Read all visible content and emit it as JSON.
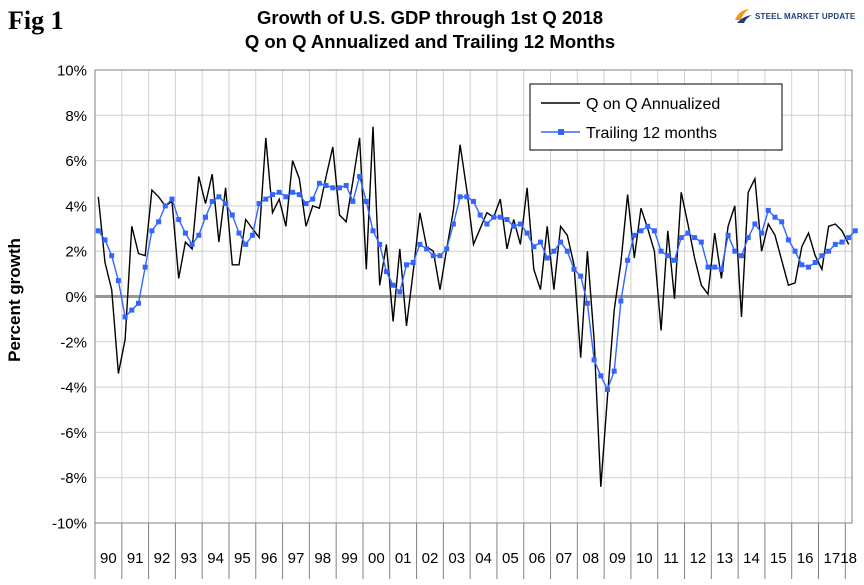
{
  "figure_label": "Fig 1",
  "logo": {
    "text": "STEEL MARKET UPDATE",
    "colors": {
      "orange": "#f7941d",
      "blue": "#1d3d7a"
    }
  },
  "chart_data": {
    "type": "line",
    "title": "Growth of U.S. GDP through 1st Q 2018",
    "subtitle": "Q on Q Annualized and Trailing 12 Months",
    "xlabel": "",
    "ylabel": "Percent growth",
    "ylim": [
      -10,
      10
    ],
    "y_ticks": [
      "-10%",
      "-8%",
      "-6%",
      "-4%",
      "-2%",
      "0%",
      "2%",
      "4%",
      "6%",
      "8%",
      "10%"
    ],
    "year_labels": [
      "90",
      "91",
      "92",
      "93",
      "94",
      "95",
      "96",
      "97",
      "98",
      "99",
      "00",
      "01",
      "02",
      "03",
      "04",
      "05",
      "06",
      "07",
      "08",
      "09",
      "10",
      "11",
      "12",
      "13",
      "14",
      "15",
      "16",
      "17",
      "18"
    ],
    "quarters_start": "1990Q1",
    "grid": true,
    "legend_position": "top-right",
    "colors": {
      "qoq": "#000000",
      "trailing": "#3366ff",
      "zero_line": "#969696",
      "grid": "#d0d0d0"
    },
    "series": [
      {
        "name": "Q on Q Annualized",
        "values": [
          4.4,
          1.5,
          0.3,
          -3.4,
          -1.9,
          3.1,
          1.9,
          1.8,
          4.7,
          4.4,
          4.0,
          4.2,
          0.8,
          2.4,
          2.1,
          5.3,
          4.1,
          5.4,
          2.4,
          4.8,
          1.4,
          1.4,
          3.4,
          3.0,
          2.6,
          7.0,
          3.7,
          4.3,
          3.1,
          6.0,
          5.2,
          3.1,
          4.0,
          3.9,
          5.3,
          6.6,
          3.6,
          3.3,
          5.1,
          7.0,
          1.2,
          7.5,
          0.5,
          2.3,
          -1.1,
          2.1,
          -1.3,
          1.1,
          3.7,
          2.2,
          2.0,
          0.3,
          2.1,
          3.8,
          6.7,
          4.7,
          2.3,
          3.0,
          3.7,
          3.5,
          4.3,
          2.1,
          3.4,
          2.3,
          4.8,
          1.2,
          0.3,
          3.1,
          0.3,
          3.1,
          2.7,
          1.4,
          -2.7,
          2.0,
          -1.9,
          -8.4,
          -4.4,
          -0.6,
          1.5,
          4.5,
          1.7,
          3.9,
          3.0,
          2.0,
          -1.5,
          2.9,
          -0.1,
          4.6,
          3.2,
          1.7,
          0.5,
          0.1,
          2.8,
          0.8,
          3.1,
          4.0,
          -0.9,
          4.6,
          5.2,
          2.0,
          3.2,
          2.7,
          1.6,
          0.5,
          0.6,
          2.2,
          2.8,
          1.8,
          1.2,
          3.1,
          3.2,
          2.9,
          2.3
        ],
        "note": "values approximate, read from chart"
      },
      {
        "name": "Trailing 12 months",
        "values": [
          2.9,
          2.5,
          1.8,
          0.7,
          -0.9,
          -0.6,
          -0.3,
          1.3,
          2.9,
          3.3,
          4.0,
          4.3,
          3.4,
          2.8,
          2.3,
          2.7,
          3.5,
          4.2,
          4.4,
          4.1,
          3.6,
          2.8,
          2.3,
          2.7,
          4.1,
          4.3,
          4.5,
          4.6,
          4.4,
          4.6,
          4.5,
          4.1,
          4.3,
          5.0,
          4.9,
          4.8,
          4.8,
          4.9,
          4.2,
          5.3,
          4.2,
          2.9,
          2.3,
          1.1,
          0.5,
          0.2,
          1.4,
          1.5,
          2.3,
          2.1,
          1.8,
          1.8,
          2.1,
          3.2,
          4.4,
          4.4,
          4.2,
          3.6,
          3.2,
          3.5,
          3.5,
          3.4,
          3.1,
          3.2,
          2.8,
          2.2,
          2.4,
          1.7,
          2.0,
          2.4,
          2.0,
          1.2,
          0.9,
          -0.3,
          -2.8,
          -3.5,
          -4.1,
          -3.3,
          -0.2,
          1.6,
          2.7,
          2.9,
          3.1,
          2.9,
          2.0,
          1.8,
          1.6,
          2.6,
          2.8,
          2.6,
          2.4,
          1.3,
          1.3,
          1.2,
          2.7,
          2.0,
          1.8,
          2.6,
          3.2,
          2.8,
          3.8,
          3.5,
          3.3,
          2.5,
          2.0,
          1.4,
          1.3,
          1.5,
          1.8,
          2.0,
          2.3,
          2.4,
          2.6,
          2.9
        ],
        "note": "values approximate, read from chart"
      }
    ]
  }
}
